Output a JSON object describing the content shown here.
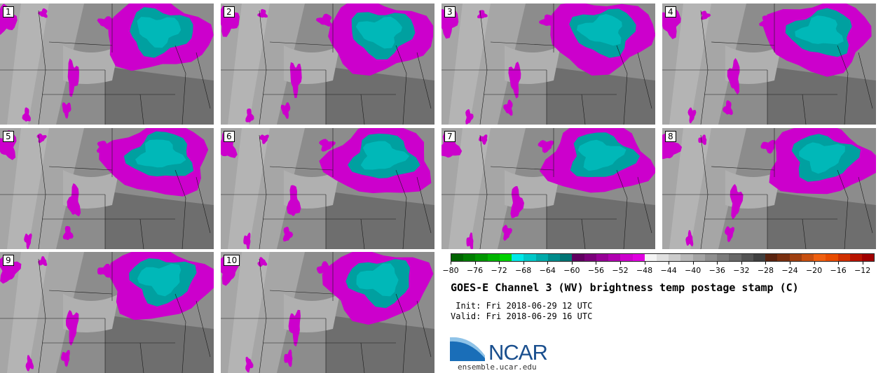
{
  "title": "GOES-E Channel 3 (WV) brightness temp postage stamp (C)",
  "init_text": " Init: Fri 2018-06-29 12 UTC",
  "valid_text": "Valid: Fri 2018-06-29 16 UTC",
  "logo_text": "NCAR",
  "url": "ensemble.ucar.edu",
  "panels": [
    {
      "label": "1"
    },
    {
      "label": "2"
    },
    {
      "label": "3"
    },
    {
      "label": "4"
    },
    {
      "label": "5"
    },
    {
      "label": "6"
    },
    {
      "label": "7"
    },
    {
      "label": "8"
    },
    {
      "label": "9"
    },
    {
      "label": "10"
    }
  ],
  "colorbar": {
    "min": -80,
    "max": -10,
    "step": 2,
    "tick_labels": [
      "-80",
      "-76",
      "-72",
      "-68",
      "-64",
      "-60",
      "-56",
      "-52",
      "-48",
      "-44",
      "-40",
      "-36",
      "-32",
      "-28",
      "-24",
      "-20",
      "-16",
      "-12"
    ],
    "colors": [
      "#006400",
      "#007d00",
      "#009600",
      "#00b400",
      "#00d200",
      "#00e8e8",
      "#00c8c8",
      "#00aaaa",
      "#008c8c",
      "#007474",
      "#600060",
      "#7a007a",
      "#960096",
      "#b000b0",
      "#cc00cc",
      "#e000e0",
      "#f4f4f4",
      "#e0e0e0",
      "#cccccc",
      "#b8b8b8",
      "#a4a4a4",
      "#909090",
      "#7c7c7c",
      "#686868",
      "#545454",
      "#404040",
      "#5a2410",
      "#7a3010",
      "#a04010",
      "#c85010",
      "#f06010",
      "#e84c00",
      "#d03000",
      "#b81400",
      "#a00000"
    ]
  },
  "colors": {
    "dry_gray": "#808080",
    "cold_magenta": "#cc00cc",
    "coldest_teal": "#009a9a",
    "border_lines": "#1a1a1a"
  }
}
